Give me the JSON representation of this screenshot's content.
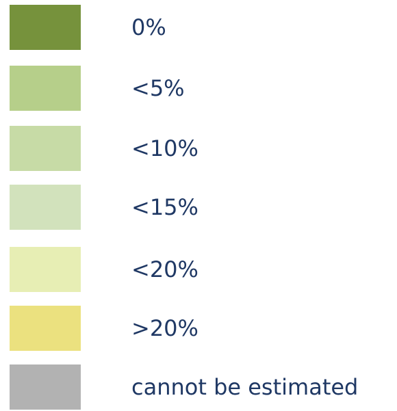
{
  "legend": {
    "items": [
      {
        "label": "0%",
        "color": "#76923c"
      },
      {
        "label": "<5%",
        "color": "#b6cf8a"
      },
      {
        "label": "<10%",
        "color": "#c7dba6"
      },
      {
        "label": "<15%",
        "color": "#d2e2bc"
      },
      {
        "label": "<20%",
        "color": "#e7eeb4"
      },
      {
        "label": ">20%",
        "color": "#ebe17f"
      },
      {
        "label": "cannot be estimated",
        "color": "#b2b2b2"
      }
    ]
  }
}
